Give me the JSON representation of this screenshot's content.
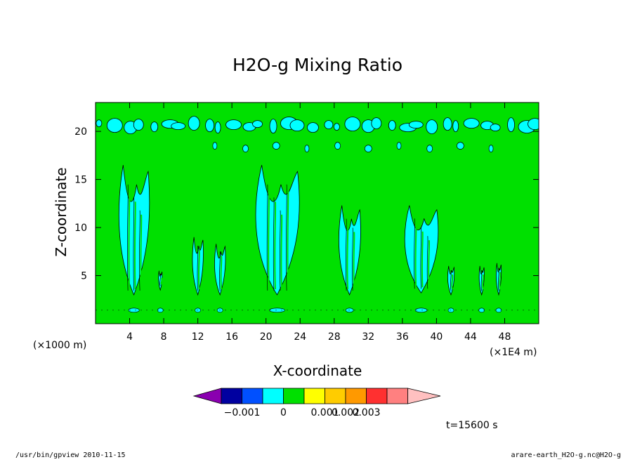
{
  "chart_data": {
    "type": "heatmap",
    "title": "H2O-g Mixing Ratio",
    "xlabel": "X-coordinate",
    "ylabel": "Z-coordinate",
    "x_units": "(×1E4 m)",
    "y_units": "(×1000 m)",
    "xlim": [
      0,
      52
    ],
    "ylim": [
      0,
      23
    ],
    "x_ticks": [
      4,
      8,
      12,
      16,
      20,
      24,
      28,
      32,
      36,
      40,
      44,
      48
    ],
    "y_ticks": [
      5,
      10,
      15,
      20
    ],
    "background_level": "0 to 0.001",
    "moist_band_z": 20.4,
    "plumes": [
      {
        "x": 4.5,
        "top": 16.5,
        "bottom": 3.0,
        "width": 4.2
      },
      {
        "x": 7.6,
        "top": 5.5,
        "bottom": 3.5,
        "width": 0.5
      },
      {
        "x": 12.0,
        "top": 9.0,
        "bottom": 3.0,
        "width": 1.5
      },
      {
        "x": 14.6,
        "top": 8.3,
        "bottom": 3.0,
        "width": 1.5
      },
      {
        "x": 21.3,
        "top": 16.5,
        "bottom": 3.0,
        "width": 6.0
      },
      {
        "x": 29.8,
        "top": 12.3,
        "bottom": 3.0,
        "width": 3.0
      },
      {
        "x": 38.2,
        "top": 12.3,
        "bottom": 3.2,
        "width": 4.6
      },
      {
        "x": 41.7,
        "top": 6.0,
        "bottom": 3.0,
        "width": 0.9
      },
      {
        "x": 45.3,
        "top": 6.0,
        "bottom": 3.0,
        "width": 0.7
      },
      {
        "x": 47.3,
        "top": 6.3,
        "bottom": 3.0,
        "width": 0.7
      }
    ],
    "colorbar": {
      "levels": [
        "−0.001",
        "0",
        "0.001",
        "0.002",
        "0.003"
      ],
      "colors": [
        "#8a00b0",
        "#0000a0",
        "#0050ff",
        "#00ffff",
        "#00e000",
        "#ffff00",
        "#ffcc00",
        "#ff9900",
        "#ff3030",
        "#ff8080",
        "#ffc0c0"
      ]
    }
  },
  "footer": {
    "time_label": "t=15600 s",
    "left_info": "/usr/bin/gpview  2010-11-15",
    "right_info": "arare-earth_H2O-g.nc@H2O-g"
  }
}
